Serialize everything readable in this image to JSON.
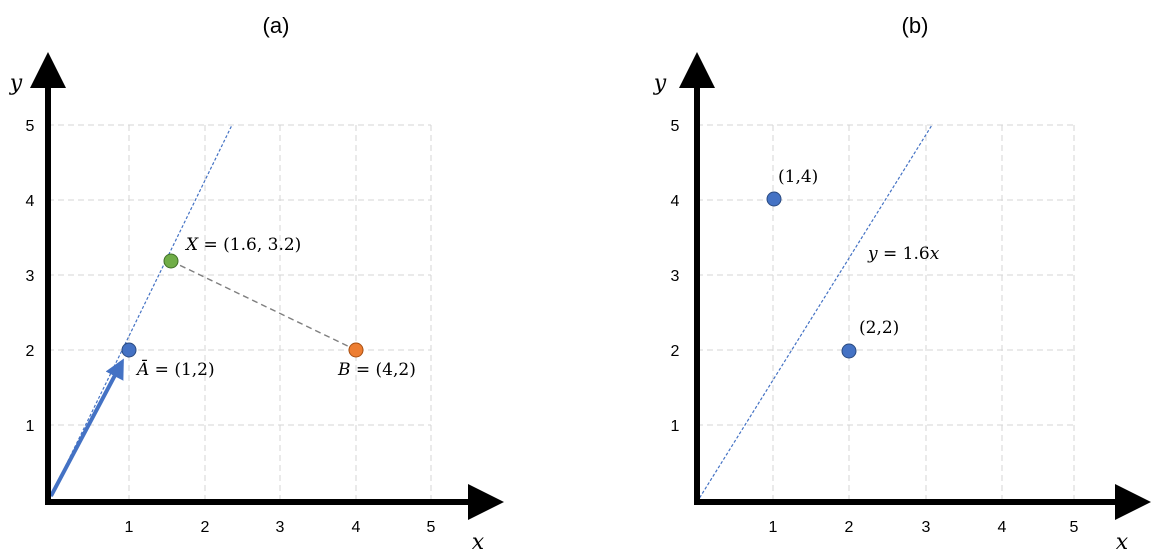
{
  "panels": [
    {
      "title": "(a)",
      "xlabel": "x",
      "ylabel": "y",
      "x_ticks": [
        "1",
        "2",
        "3",
        "4",
        "5"
      ],
      "y_ticks": [
        "1",
        "2",
        "3",
        "4",
        "5"
      ],
      "points": [
        {
          "name": "A",
          "x": 1,
          "y": 2,
          "color": "#4472c4",
          "label_var": "Ā",
          "label_rest": " = (1,2)"
        },
        {
          "name": "X",
          "x": 1.6,
          "y": 3.2,
          "color": "#70ad47",
          "label_var": "X",
          "label_rest": " = (1.6, 3.2)"
        },
        {
          "name": "B",
          "x": 4,
          "y": 2,
          "color": "#ed7d31",
          "label_var": "B",
          "label_rest": " = (4,2)"
        }
      ],
      "line_slope": 2,
      "vector": {
        "from": [
          0,
          0
        ],
        "to": [
          1,
          2
        ],
        "color": "#4472c4"
      },
      "projection_segment": {
        "from": [
          1.6,
          3.2
        ],
        "to": [
          4,
          2
        ],
        "color": "#7f7f7f"
      }
    },
    {
      "title": "(b)",
      "xlabel": "x",
      "ylabel": "y",
      "x_ticks": [
        "1",
        "2",
        "3",
        "4",
        "5"
      ],
      "y_ticks": [
        "1",
        "2",
        "3",
        "4",
        "5"
      ],
      "points": [
        {
          "name": "P1",
          "x": 1,
          "y": 4,
          "color": "#4472c4",
          "label": "(1,4)"
        },
        {
          "name": "P2",
          "x": 2,
          "y": 2,
          "color": "#4472c4",
          "label": "(2,2)"
        }
      ],
      "line_slope": 1.6,
      "line_label_var": "y",
      "line_label_rest": " = 1.6",
      "line_label_var2": "x"
    }
  ],
  "colors": {
    "line": "#4472c4",
    "axis": "#000000",
    "grid": "#d4d4d4"
  }
}
